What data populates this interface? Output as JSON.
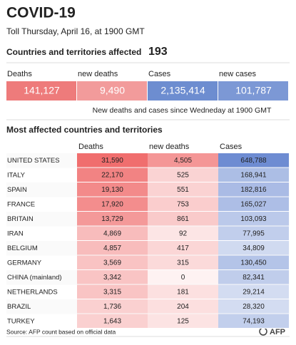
{
  "header": {
    "title": "COVID-19",
    "subtitle": "Toll Thursday, April 16, at 1900 GMT",
    "affected_label": "Countries and territories affected",
    "affected_value": "193"
  },
  "summary": {
    "labels": [
      "Deaths",
      "new deaths",
      "Cases",
      "new cases"
    ],
    "values": [
      "141,127",
      "9,490",
      "2,135,414",
      "101,787"
    ],
    "note": "New deaths and cases since Wedneday at 1900 GMT"
  },
  "table": {
    "title": "Most affected countries and territories",
    "columns": [
      "Deaths",
      "new deaths",
      "Cases"
    ],
    "rows": [
      [
        "UNITED STATES",
        "31,590",
        "4,505",
        "648,788"
      ],
      [
        "ITALY",
        "22,170",
        "525",
        "168,941"
      ],
      [
        "SPAIN",
        "19,130",
        "551",
        "182,816"
      ],
      [
        "FRANCE",
        "17,920",
        "753",
        "165,027"
      ],
      [
        "BRITAIN",
        "13,729",
        "861",
        "103,093"
      ],
      [
        "IRAN",
        "4,869",
        "92",
        "77,995"
      ],
      [
        "BELGIUM",
        "4,857",
        "417",
        "34,809"
      ],
      [
        "GERMANY",
        "3,569",
        "315",
        "130,450"
      ],
      [
        "CHINA (mainland)",
        "3,342",
        "0",
        "82,341"
      ],
      [
        "NETHERLANDS",
        "3,315",
        "181",
        "29,214"
      ],
      [
        "BRAZIL",
        "1,736",
        "204",
        "28,320"
      ],
      [
        "TURKEY",
        "1,643",
        "125",
        "74,193"
      ]
    ]
  },
  "footer": {
    "source": "Source: AFP count based on official data",
    "logo": "AFP"
  }
}
